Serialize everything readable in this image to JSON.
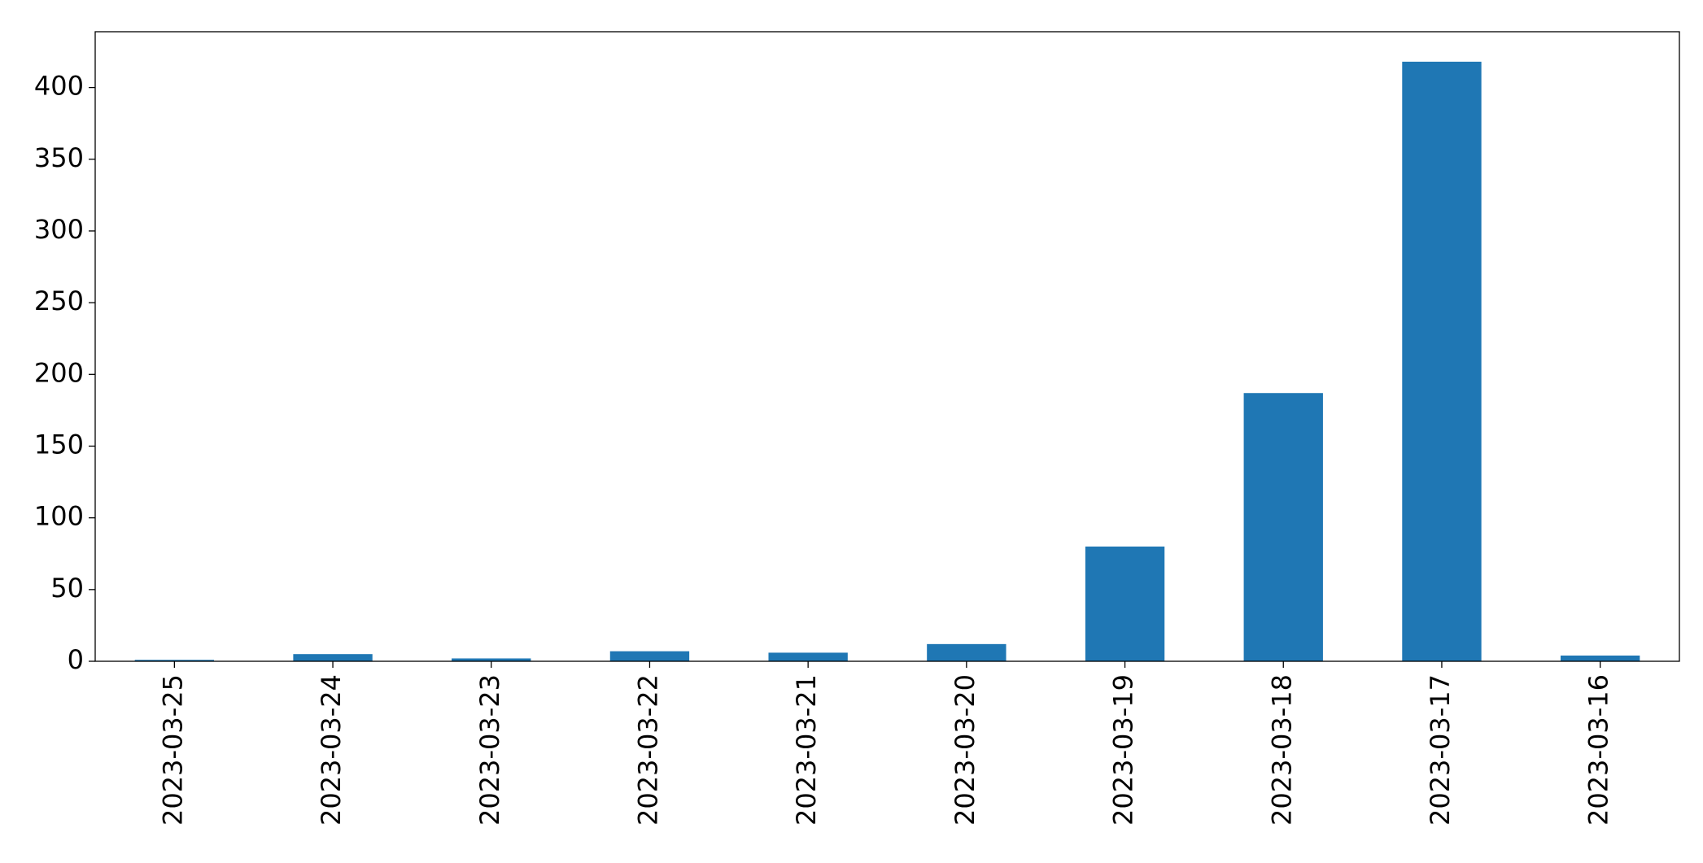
{
  "chart_data": {
    "type": "bar",
    "categories": [
      "2023-03-25",
      "2023-03-24",
      "2023-03-23",
      "2023-03-22",
      "2023-03-21",
      "2023-03-20",
      "2023-03-19",
      "2023-03-18",
      "2023-03-17",
      "2023-03-16"
    ],
    "values": [
      1,
      5,
      2,
      7,
      6,
      12,
      80,
      187,
      418,
      4
    ],
    "color": "#1f77b4",
    "ylim": [
      0,
      438.9
    ],
    "yticks": [
      0,
      50,
      100,
      150,
      200,
      250,
      300,
      350,
      400
    ],
    "grid": false
  }
}
